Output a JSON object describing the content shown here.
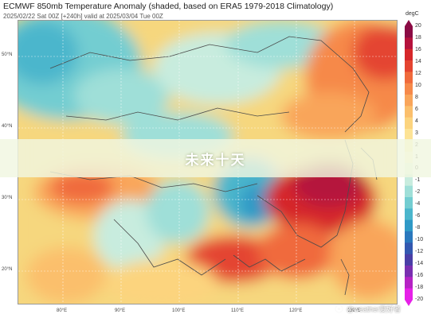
{
  "header": {
    "title": "ECMWF 850mb Temperature Anomaly (shaded, based on ERA5 1979-2018 Climatology)",
    "subtitle": "2025/02/22 Sat 00Z [+240h] valid at 2025/03/04 Tue 00Z"
  },
  "map": {
    "lat_labels": [
      "50°N",
      "40°N",
      "30°N",
      "20°N"
    ],
    "lon_labels": [
      "80°E",
      "90°E",
      "100°E",
      "110°E",
      "120°E",
      "130°E"
    ]
  },
  "colorbar": {
    "unit": "degC",
    "ticks": [
      "20",
      "18",
      "16",
      "14",
      "12",
      "10",
      "8",
      "6",
      "4",
      "3",
      "2",
      "1",
      "0",
      "-1",
      "-2",
      "-4",
      "-6",
      "-8",
      "-10",
      "-12",
      "-14",
      "-16",
      "-18",
      "-20"
    ],
    "colors": [
      "#8b0b44",
      "#b5123c",
      "#d6272a",
      "#e44430",
      "#f06a3c",
      "#f6894a",
      "#f9a55a",
      "#fbbf6c",
      "#fcd47e",
      "#fde395",
      "#fef0b2",
      "#fbf8d2",
      "#e8f6e0",
      "#c8ecde",
      "#9fdfd8",
      "#73cdd1",
      "#4bb6cc",
      "#2f99c6",
      "#2a78bd",
      "#3358b0",
      "#4a3ea6",
      "#7a2fb0",
      "#b523c4",
      "#e620e8"
    ]
  },
  "banner": {
    "text": "未来十天"
  },
  "watermark": {
    "text": "@weather爱好者"
  },
  "anomaly_colors": {
    "cold": "#2f99c6",
    "cool": "#73cdd1",
    "neutral": "#fbf8d2",
    "warm": "#fcd47e",
    "hot": "#f06a3c",
    "very_hot": "#d6272a"
  }
}
